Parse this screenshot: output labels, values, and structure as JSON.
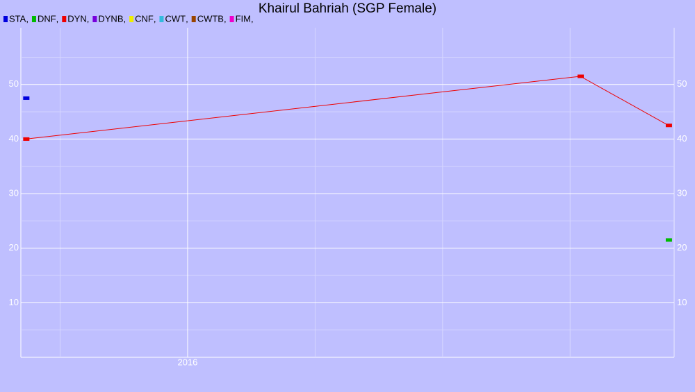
{
  "chart_data": {
    "type": "line",
    "title": "Khairul Bahriah (SGP Female)",
    "legend_separator": ",",
    "series": [
      {
        "name": "STA",
        "color": "#0000dd",
        "x": [
          2015.683
        ],
        "values": [
          47.5
        ]
      },
      {
        "name": "DNF",
        "color": "#00bb00",
        "x": [
          2016.943
        ],
        "values": [
          21.5
        ]
      },
      {
        "name": "DYN",
        "color": "#ee0000",
        "x": [
          2015.683,
          2016.77,
          2016.943
        ],
        "values": [
          40,
          51.5,
          42.5
        ]
      },
      {
        "name": "DYNB",
        "color": "#7700dd",
        "x": [],
        "values": []
      },
      {
        "name": "CNF",
        "color": "#eeee00",
        "x": [],
        "values": []
      },
      {
        "name": "CWT",
        "color": "#33bbdd",
        "x": [],
        "values": []
      },
      {
        "name": "CWTB",
        "color": "#994400",
        "x": [],
        "values": []
      },
      {
        "name": "FIM",
        "color": "#ee00cc",
        "x": [],
        "values": []
      }
    ],
    "xlim": [
      2015.673,
      2016.954
    ],
    "xticks": [
      2016
    ],
    "xminor": [
      2015.75,
      2016.25,
      2016.5,
      2016.75
    ],
    "ylim": [
      0,
      60.4
    ],
    "yticks": [
      10,
      20,
      30,
      40,
      50
    ],
    "yminor": [
      5,
      15,
      25,
      35,
      45,
      55
    ],
    "grid": true
  }
}
